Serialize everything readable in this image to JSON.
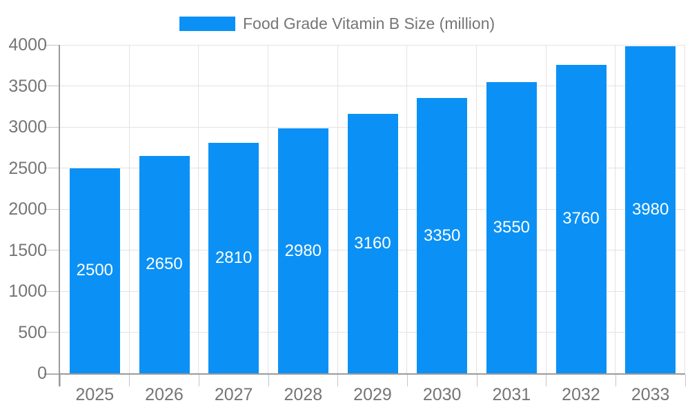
{
  "legend": {
    "label": "Food Grade Vitamin B Size (million)"
  },
  "colors": {
    "bar": "#0B91F5",
    "text": "#757575",
    "grid": "#E2E2E2",
    "axis": "#9A9A9A",
    "tick": "#C4C4C4",
    "bar_label": "#FFFFFF",
    "background": "#FFFFFF"
  },
  "chart_data": {
    "type": "bar",
    "title": "Food Grade Vitamin B Size (million)",
    "series_name": "Food Grade Vitamin B Size (million)",
    "categories": [
      "2025",
      "2026",
      "2027",
      "2028",
      "2029",
      "2030",
      "2031",
      "2032",
      "2033"
    ],
    "values": [
      2500,
      2650,
      2810,
      2980,
      3160,
      3350,
      3550,
      3760,
      3980
    ],
    "xlabel": "",
    "ylabel": "",
    "ylim": [
      0,
      4000
    ],
    "yticks": [
      0,
      500,
      1000,
      1500,
      2000,
      2500,
      3000,
      3500,
      4000
    ],
    "grid": true,
    "legend_position": "top",
    "value_labels": "inside-center"
  }
}
